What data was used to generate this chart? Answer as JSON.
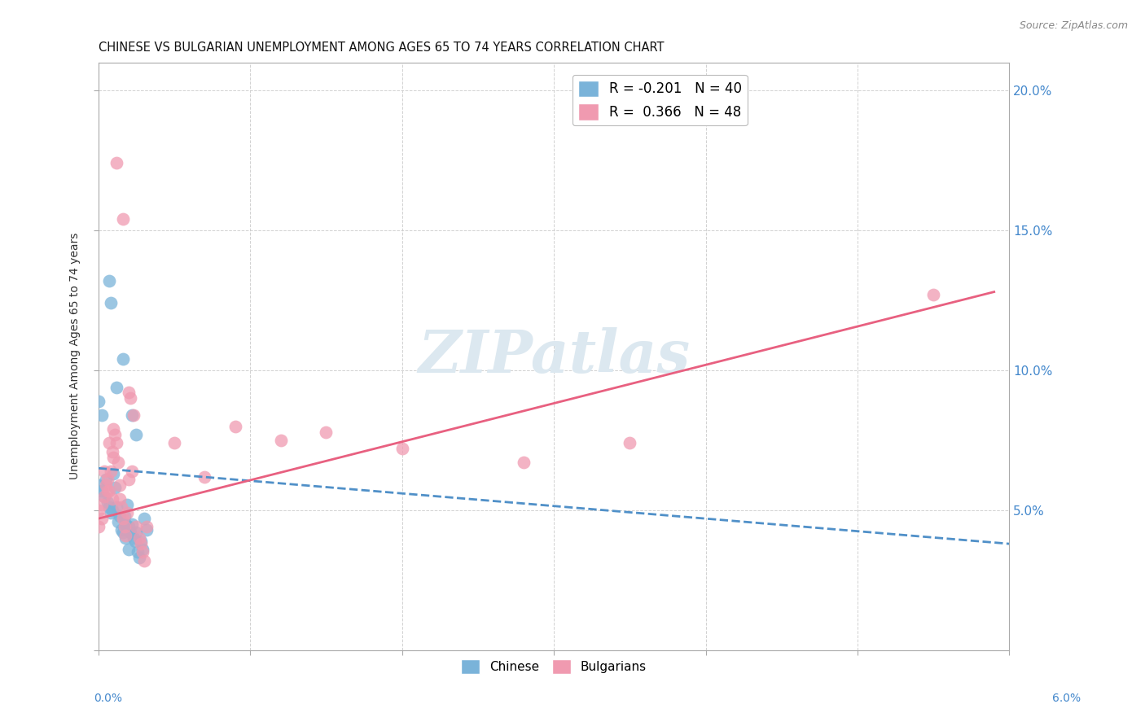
{
  "title": "CHINESE VS BULGARIAN UNEMPLOYMENT AMONG AGES 65 TO 74 YEARS CORRELATION CHART",
  "source": "Source: ZipAtlas.com",
  "ylabel": "Unemployment Among Ages 65 to 74 years",
  "xlim": [
    0.0,
    6.0
  ],
  "ylim": [
    0.0,
    21.0
  ],
  "chinese_color": "#7ab3d9",
  "bulgarian_color": "#f09ab0",
  "trend_chinese_color": "#5090c8",
  "trend_bulgarian_color": "#e86080",
  "watermark_color": "#dce8f0",
  "background_color": "#ffffff",
  "grid_color": "#cccccc",
  "right_ytick_color": "#4488cc",
  "chinese_points": [
    [
      0.0,
      5.9
    ],
    [
      0.02,
      5.7
    ],
    [
      0.04,
      5.5
    ],
    [
      0.05,
      6.1
    ],
    [
      0.06,
      5.3
    ],
    [
      0.07,
      5.1
    ],
    [
      0.08,
      4.9
    ],
    [
      0.09,
      5.0
    ],
    [
      0.1,
      6.3
    ],
    [
      0.11,
      5.8
    ],
    [
      0.12,
      5.1
    ],
    [
      0.13,
      4.6
    ],
    [
      0.14,
      4.8
    ],
    [
      0.15,
      4.3
    ],
    [
      0.16,
      4.2
    ],
    [
      0.17,
      4.8
    ],
    [
      0.18,
      4.5
    ],
    [
      0.19,
      5.2
    ],
    [
      0.2,
      4.4
    ],
    [
      0.21,
      4.2
    ],
    [
      0.22,
      4.5
    ],
    [
      0.23,
      4.0
    ],
    [
      0.24,
      3.9
    ],
    [
      0.25,
      4.2
    ],
    [
      0.26,
      3.5
    ],
    [
      0.27,
      3.3
    ],
    [
      0.28,
      3.9
    ],
    [
      0.29,
      3.6
    ],
    [
      0.3,
      4.7
    ],
    [
      0.32,
      4.3
    ],
    [
      0.07,
      13.2
    ],
    [
      0.08,
      12.4
    ],
    [
      0.12,
      9.4
    ],
    [
      0.16,
      10.4
    ],
    [
      0.0,
      8.9
    ],
    [
      0.02,
      8.4
    ],
    [
      0.22,
      8.4
    ],
    [
      0.25,
      7.7
    ],
    [
      0.18,
      4.0
    ],
    [
      0.2,
      3.6
    ]
  ],
  "bulgarian_points": [
    [
      0.0,
      5.0
    ],
    [
      0.02,
      5.2
    ],
    [
      0.04,
      5.5
    ],
    [
      0.05,
      5.9
    ],
    [
      0.06,
      5.7
    ],
    [
      0.07,
      7.4
    ],
    [
      0.08,
      6.4
    ],
    [
      0.09,
      7.1
    ],
    [
      0.1,
      6.9
    ],
    [
      0.11,
      7.7
    ],
    [
      0.12,
      7.4
    ],
    [
      0.13,
      6.7
    ],
    [
      0.14,
      5.4
    ],
    [
      0.15,
      5.1
    ],
    [
      0.16,
      4.7
    ],
    [
      0.17,
      4.4
    ],
    [
      0.18,
      4.1
    ],
    [
      0.19,
      4.9
    ],
    [
      0.2,
      9.2
    ],
    [
      0.21,
      9.0
    ],
    [
      0.22,
      6.4
    ],
    [
      0.23,
      8.4
    ],
    [
      0.25,
      4.4
    ],
    [
      0.27,
      4.0
    ],
    [
      0.28,
      3.8
    ],
    [
      0.29,
      3.5
    ],
    [
      0.3,
      3.2
    ],
    [
      0.32,
      4.4
    ],
    [
      0.12,
      17.4
    ],
    [
      0.16,
      15.4
    ],
    [
      0.0,
      4.4
    ],
    [
      0.02,
      4.7
    ],
    [
      0.04,
      6.4
    ],
    [
      0.06,
      6.1
    ],
    [
      0.07,
      5.7
    ],
    [
      0.09,
      5.4
    ],
    [
      0.1,
      7.9
    ],
    [
      0.2,
      6.1
    ],
    [
      0.5,
      7.4
    ],
    [
      0.7,
      6.2
    ],
    [
      0.9,
      8.0
    ],
    [
      1.2,
      7.5
    ],
    [
      1.5,
      7.8
    ],
    [
      2.0,
      7.2
    ],
    [
      2.8,
      6.7
    ],
    [
      3.5,
      7.4
    ],
    [
      5.5,
      12.7
    ],
    [
      0.14,
      5.9
    ]
  ],
  "chinese_trend_x": [
    0.0,
    6.0
  ],
  "chinese_trend_y": [
    6.5,
    3.8
  ],
  "bulgarian_trend_x": [
    0.0,
    5.9
  ],
  "bulgarian_trend_y": [
    4.7,
    12.8
  ],
  "right_yticks": [
    5.0,
    10.0,
    15.0,
    20.0
  ],
  "right_ytick_labels": [
    "5.0%",
    "10.0%",
    "15.0%",
    "20.0%"
  ]
}
